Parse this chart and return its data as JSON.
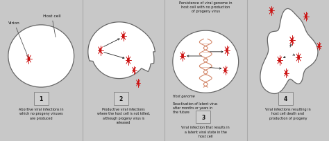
{
  "bg_color": "#c8c8c8",
  "virus_color": "#cc1111",
  "arrow_color": "#222222",
  "text_color": "#111111",
  "cell_edge": "#666666",
  "cell_face": "#ffffff",
  "dna_color": "#d4886a",
  "panels": [
    {
      "id": 1,
      "label": "1",
      "caption": "Abortive viral infections in\nwhich no progeny viruses\nare produced"
    },
    {
      "id": 2,
      "label": "2",
      "caption": "Productive viral infections\nwhere the host cell is not killed,\nalthough progeny virus is\nreleased"
    },
    {
      "id": 3,
      "label": "3",
      "caption": "Viral infection that results in\na latent viral state in the\nhost cell",
      "top_text": "Persistence of viral genome in\nhost cell with no production\nof progeny virus",
      "mid_text1": "Host genome",
      "mid_text2": "Reactivation of latent virus\nafter months or years in\nthe future"
    },
    {
      "id": 4,
      "label": "4",
      "caption": "Viral infections resulting in\nhost cell death and\nproduction of progeny"
    }
  ],
  "figsize": [
    4.74,
    2.05
  ],
  "dpi": 100
}
